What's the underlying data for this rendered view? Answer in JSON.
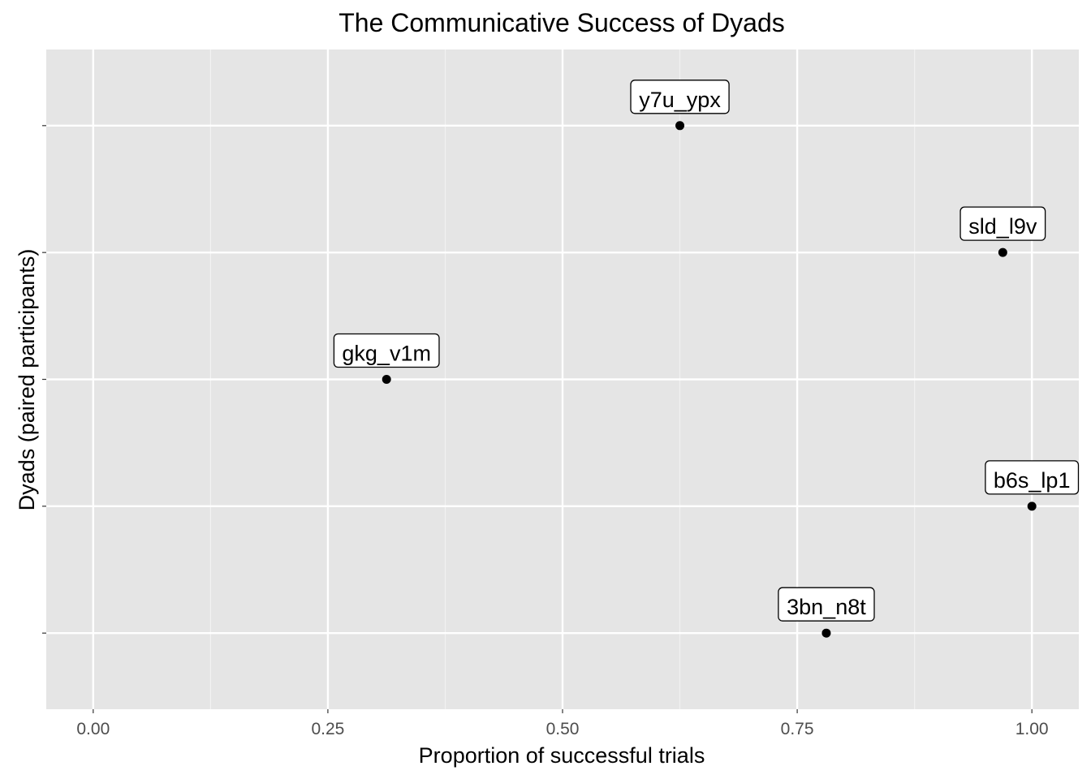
{
  "chart_data": {
    "type": "scatter",
    "title": "The Communicative Success of Dyads",
    "xlabel": "Proportion of successful trials",
    "ylabel": "Dyads (paired participants)",
    "xlim": [
      -0.05,
      1.05
    ],
    "ylim": [
      0.4,
      5.6
    ],
    "x_ticks": [
      0,
      0.25,
      0.5,
      0.75,
      1.0
    ],
    "x_tick_labels": [
      "0.00",
      "0.25",
      "0.50",
      "0.75",
      "1.00"
    ],
    "y_ticks": [
      1,
      2,
      3,
      4,
      5
    ],
    "y_tick_labels": [
      "",
      "",
      "",
      "",
      ""
    ],
    "grid": true,
    "legend": "none",
    "points": [
      {
        "label": "3bn_n8t",
        "x": 0.781,
        "y": 1
      },
      {
        "label": "b6s_lp1",
        "x": 1.0,
        "y": 2
      },
      {
        "label": "gkg_v1m",
        "x": 0.3125,
        "y": 3
      },
      {
        "label": "sld_l9v",
        "x": 0.969,
        "y": 4
      },
      {
        "label": "y7u_ypx",
        "x": 0.625,
        "y": 5
      }
    ],
    "colors": {
      "panel_background": "#e5e5e5",
      "grid_major": "#ffffff",
      "grid_minor": "#f2f2f2",
      "point": "#000000"
    }
  }
}
